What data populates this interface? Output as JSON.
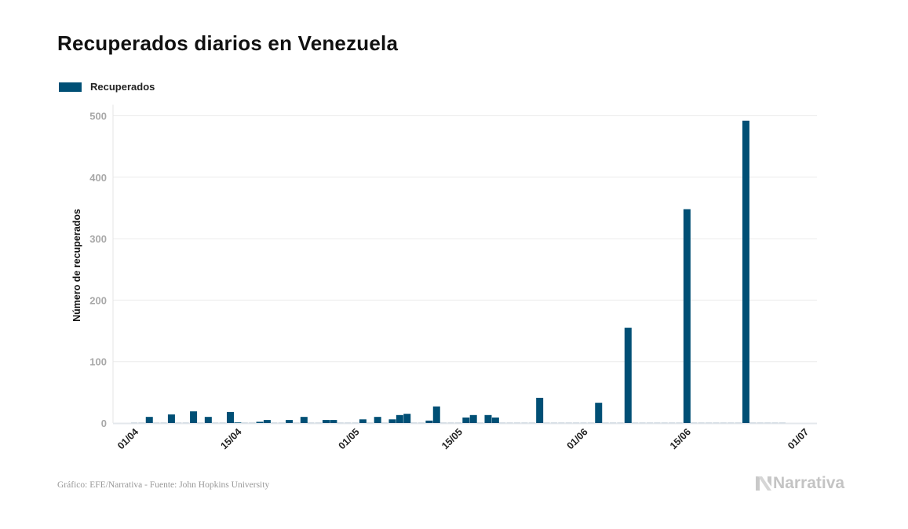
{
  "header": {
    "title": "Recuperados diarios en Venezuela"
  },
  "legend": {
    "label": "Recuperados",
    "color": "#004f75"
  },
  "footer": {
    "credit": "Gráfico: EFE/Narrativa - Fuente: John Hopkins University",
    "brand": "Narrativa"
  },
  "chart_data": {
    "type": "bar",
    "title": "Recuperados diarios en Venezuela",
    "xlabel": "",
    "ylabel": "Número de recuperados",
    "ylim": [
      0,
      500
    ],
    "yticks": [
      0,
      100,
      200,
      300,
      400,
      500
    ],
    "xticks": [
      "01/04",
      "15/04",
      "01/05",
      "15/05",
      "01/06",
      "15/06",
      "01/07"
    ],
    "xtick_day_index": [
      0,
      14,
      30,
      44,
      61,
      75,
      91
    ],
    "grid": true,
    "legend_position": "top-left",
    "series": [
      {
        "name": "Recuperados",
        "color": "#004f75",
        "start_date": "01/04",
        "values": [
          0,
          0,
          10,
          0,
          0,
          14,
          0,
          0,
          19,
          0,
          10,
          0,
          0,
          18,
          1,
          0,
          0,
          2,
          5,
          0,
          0,
          5,
          0,
          10,
          0,
          0,
          5,
          5,
          0,
          0,
          0,
          6,
          0,
          10,
          0,
          6,
          13,
          15,
          0,
          0,
          4,
          27,
          0,
          0,
          0,
          9,
          13,
          0,
          13,
          9,
          0,
          0,
          0,
          0,
          0,
          41,
          0,
          0,
          0,
          0,
          0,
          0,
          0,
          33,
          0,
          0,
          0,
          155,
          0,
          0,
          0,
          0,
          0,
          0,
          0,
          348,
          0,
          0,
          0,
          0,
          0,
          0,
          0,
          492,
          0,
          0,
          0,
          0,
          0
        ]
      }
    ]
  }
}
